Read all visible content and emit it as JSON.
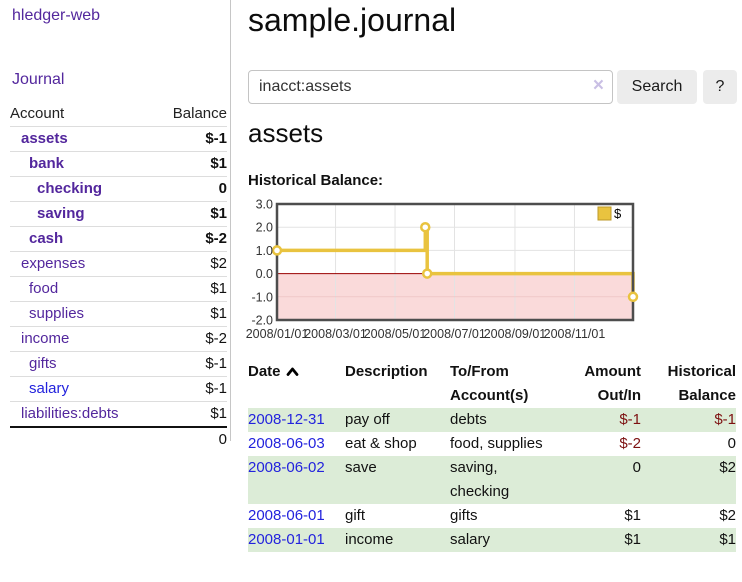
{
  "palette": {
    "link_purple": "#53279d",
    "link_blue": "#2323dd",
    "negative_strong": "#7d1111",
    "negative_muted": "#b56868",
    "row_stripe_green": "#dcecd7",
    "button_bg": "#ececec"
  },
  "sidebar": {
    "brand": "hledger-web",
    "journal_link": "Journal",
    "account_table": {
      "headers": {
        "account": "Account",
        "balance": "Balance"
      },
      "rows": [
        {
          "account": "assets",
          "depth": 1,
          "bold": true,
          "balance": "$-1",
          "neg": "strong"
        },
        {
          "account": "bank",
          "depth": 2,
          "bold": true,
          "balance": "$1"
        },
        {
          "account": "checking",
          "depth": 3,
          "bold": true,
          "balance": "0"
        },
        {
          "account": "saving",
          "depth": 3,
          "bold": true,
          "balance": "$1"
        },
        {
          "account": "cash",
          "depth": 2,
          "bold": true,
          "balance": "$-2",
          "neg": "strong"
        },
        {
          "account": "expenses",
          "depth": 1,
          "bold": false,
          "balance": "$2"
        },
        {
          "account": "food",
          "depth": 2,
          "bold": false,
          "balance": "$1"
        },
        {
          "account": "supplies",
          "depth": 2,
          "bold": false,
          "balance": "$1"
        },
        {
          "account": "income",
          "depth": 1,
          "bold": false,
          "balance": "$-2",
          "neg": "muted"
        },
        {
          "account": "gifts",
          "depth": 2,
          "bold": false,
          "balance": "$-1",
          "neg": "muted"
        },
        {
          "account": "salary",
          "depth": 2,
          "bold": false,
          "balance": "$-1",
          "neg": "muted",
          "link": "blue"
        },
        {
          "account": "liabilities:debts",
          "depth": 1,
          "bold": false,
          "balance": "$1"
        }
      ],
      "total": "0"
    }
  },
  "main": {
    "title": "sample.journal",
    "search": {
      "value": "inacct:assets",
      "clear_icon": "×",
      "button": "Search",
      "help_button": "?"
    },
    "heading": "assets"
  },
  "chart_data": {
    "type": "line",
    "step": true,
    "title": "Historical Balance:",
    "series": [
      {
        "name": "$",
        "points": [
          [
            "2008-01-01",
            1
          ],
          [
            "2008-06-01",
            2
          ],
          [
            "2008-06-03",
            0
          ],
          [
            "2008-12-31",
            -1
          ]
        ]
      }
    ],
    "x_start": "2008-01-01",
    "x_end": "2008-12-31",
    "ylim": [
      -2,
      3
    ],
    "yticks": [
      "3.0",
      "2.0",
      "1.0",
      "0.0",
      "-1.0",
      "-2.0"
    ],
    "xticks": [
      "2008/01/01",
      "2008/03/01",
      "2008/05/01",
      "2008/07/01",
      "2008/09/01",
      "2008/11/01"
    ],
    "legend": {
      "label": "$",
      "position": "top-right"
    },
    "grid": true,
    "colors": {
      "line": "#e9c33f",
      "marker_fill": "#ffffff",
      "negative_region": "#fadada",
      "zero_line": "#990000",
      "grid": "#e3e3e3",
      "grid_negative": "#efc8c8",
      "border": "#4d4d4d",
      "legend_box_border": "#bd992a"
    }
  },
  "register_table": {
    "columns": [
      {
        "label": "Date",
        "sort": "asc",
        "align": "left"
      },
      {
        "label": "Description",
        "align": "left"
      },
      {
        "label": "To/From\nAccount(s)",
        "align": "left"
      },
      {
        "label": "Amount\nOut/In",
        "align": "right"
      },
      {
        "label": "Historical\nBalance",
        "align": "right"
      }
    ],
    "rows": [
      {
        "date": "2008-12-31",
        "description": "pay off",
        "accounts": "debts",
        "amount": "$-1",
        "amount_negative": true,
        "balance": "$-1",
        "balance_negative": true
      },
      {
        "date": "2008-06-03",
        "description": "eat & shop",
        "accounts": "food, supplies",
        "amount": "$-2",
        "amount_negative": true,
        "balance": "0",
        "balance_negative": false
      },
      {
        "date": "2008-06-02",
        "description": "save",
        "accounts": "saving, checking",
        "amount": "0",
        "amount_negative": false,
        "balance": "$2",
        "balance_negative": false
      },
      {
        "date": "2008-06-01",
        "description": "gift",
        "accounts": "gifts",
        "amount": "$1",
        "amount_negative": false,
        "balance": "$2",
        "balance_negative": false
      },
      {
        "date": "2008-01-01",
        "description": "income",
        "accounts": "salary",
        "amount": "$1",
        "amount_negative": false,
        "balance": "$1",
        "balance_negative": false
      }
    ]
  }
}
